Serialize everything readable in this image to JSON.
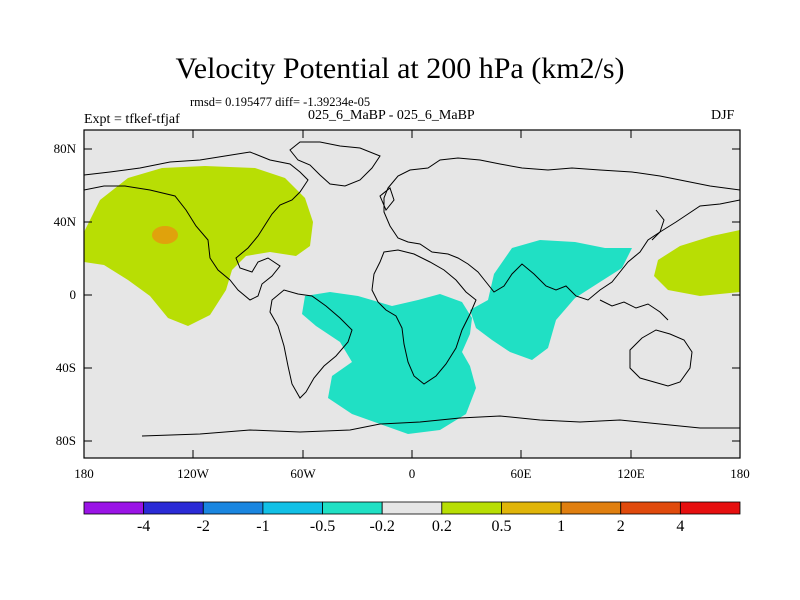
{
  "title": "Velocity Potential at 200 hPa (km2/s)",
  "stats": "rmsd= 0.195477 diff= -1.39234e-05",
  "experiment": "Expt = tfkef-tfjaf",
  "case": "025_6_MaBP - 025_6_MaBP",
  "season": "DJF",
  "lat_labels": [
    "80N",
    "40N",
    "0",
    "40S",
    "80S"
  ],
  "lon_labels": [
    "180",
    "120W",
    "60W",
    "0",
    "60E",
    "120E",
    "180"
  ],
  "colorbar": {
    "labels": [
      "-4",
      "-2",
      "-1",
      "-0.5",
      "-0.2",
      "0.2",
      "0.5",
      "1",
      "2",
      "4"
    ],
    "colors": [
      "#9a14e6",
      "#2b2bd6",
      "#1a86e0",
      "#12c0e6",
      "#20e0c4",
      "#e6e6e6",
      "#b8de04",
      "#e0b50a",
      "#e07f10",
      "#e04a0c",
      "#e60f0f"
    ]
  },
  "colors": {
    "neutral": "#e6e6e6",
    "positive_small": "#b8de04",
    "positive_mid": "#e0a20c",
    "negative_small": "#20e0c4",
    "coast": "#000000"
  }
}
